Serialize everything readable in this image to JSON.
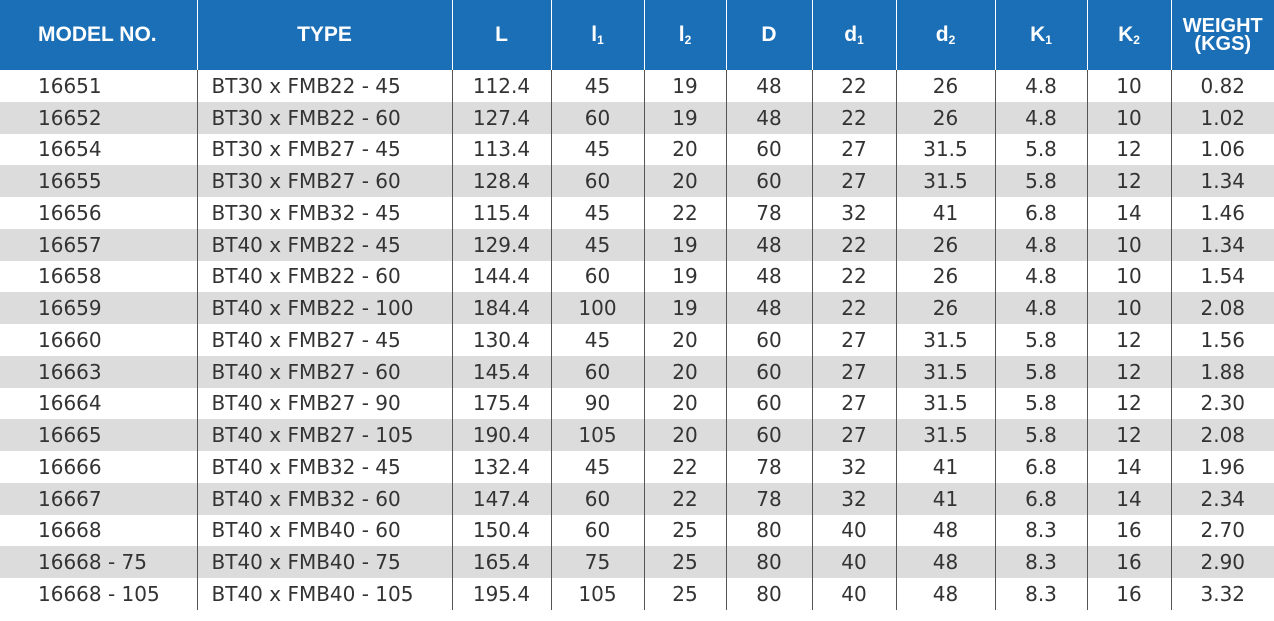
{
  "headers": {
    "model": "MODEL NO.",
    "type": "TYPE",
    "L": "L",
    "l1": "l",
    "l1_sub": "1",
    "l2": "l",
    "l2_sub": "2",
    "D": "D",
    "d1": "d",
    "d1_sub": "1",
    "d2": "d",
    "d2_sub": "2",
    "K1": "K",
    "K1_sub": "1",
    "K2": "K",
    "K2_sub": "2",
    "weight_line1": "WEIGHT",
    "weight_line2": "(KGS)"
  },
  "rows": [
    [
      "16651",
      "BT30 x FMB22 - 45",
      "112.4",
      "45",
      "19",
      "48",
      "22",
      "26",
      "4.8",
      "10",
      "0.82"
    ],
    [
      "16652",
      "BT30 x FMB22 - 60",
      "127.4",
      "60",
      "19",
      "48",
      "22",
      "26",
      "4.8",
      "10",
      "1.02"
    ],
    [
      "16654",
      "BT30 x FMB27 - 45",
      "113.4",
      "45",
      "20",
      "60",
      "27",
      "31.5",
      "5.8",
      "12",
      "1.06"
    ],
    [
      "16655",
      "BT30 x FMB27 - 60",
      "128.4",
      "60",
      "20",
      "60",
      "27",
      "31.5",
      "5.8",
      "12",
      "1.34"
    ],
    [
      "16656",
      "BT30 x FMB32 - 45",
      "115.4",
      "45",
      "22",
      "78",
      "32",
      "41",
      "6.8",
      "14",
      "1.46"
    ],
    [
      "16657",
      "BT40 x FMB22 - 45",
      "129.4",
      "45",
      "19",
      "48",
      "22",
      "26",
      "4.8",
      "10",
      "1.34"
    ],
    [
      "16658",
      "BT40 x FMB22 - 60",
      "144.4",
      "60",
      "19",
      "48",
      "22",
      "26",
      "4.8",
      "10",
      "1.54"
    ],
    [
      "16659",
      "BT40 x FMB22 - 100",
      "184.4",
      "100",
      "19",
      "48",
      "22",
      "26",
      "4.8",
      "10",
      "2.08"
    ],
    [
      "16660",
      "BT40 x FMB27 - 45",
      "130.4",
      "45",
      "20",
      "60",
      "27",
      "31.5",
      "5.8",
      "12",
      "1.56"
    ],
    [
      "16663",
      "BT40 x FMB27 - 60",
      "145.4",
      "60",
      "20",
      "60",
      "27",
      "31.5",
      "5.8",
      "12",
      "1.88"
    ],
    [
      "16664",
      "BT40 x FMB27 - 90",
      "175.4",
      "90",
      "20",
      "60",
      "27",
      "31.5",
      "5.8",
      "12",
      "2.30"
    ],
    [
      "16665",
      "BT40 x FMB27 - 105",
      "190.4",
      "105",
      "20",
      "60",
      "27",
      "31.5",
      "5.8",
      "12",
      "2.08"
    ],
    [
      "16666",
      "BT40 x FMB32 - 45",
      "132.4",
      "45",
      "22",
      "78",
      "32",
      "41",
      "6.8",
      "14",
      "1.96"
    ],
    [
      "16667",
      "BT40 x FMB32 - 60",
      "147.4",
      "60",
      "22",
      "78",
      "32",
      "41",
      "6.8",
      "14",
      "2.34"
    ],
    [
      "16668",
      "BT40 x FMB40 - 60",
      "150.4",
      "60",
      "25",
      "80",
      "40",
      "48",
      "8.3",
      "16",
      "2.70"
    ],
    [
      "16668 - 75",
      "BT40 x FMB40 - 75",
      "165.4",
      "75",
      "25",
      "80",
      "40",
      "48",
      "8.3",
      "16",
      "2.90"
    ],
    [
      "16668 - 105",
      "BT40 x FMB40 - 105",
      "195.4",
      "105",
      "25",
      "80",
      "40",
      "48",
      "8.3",
      "16",
      "3.32"
    ]
  ],
  "colors": {
    "header_bg": "#1b6fb7",
    "header_text": "#ffffff",
    "stripe_bg": "#dcdcdc"
  }
}
